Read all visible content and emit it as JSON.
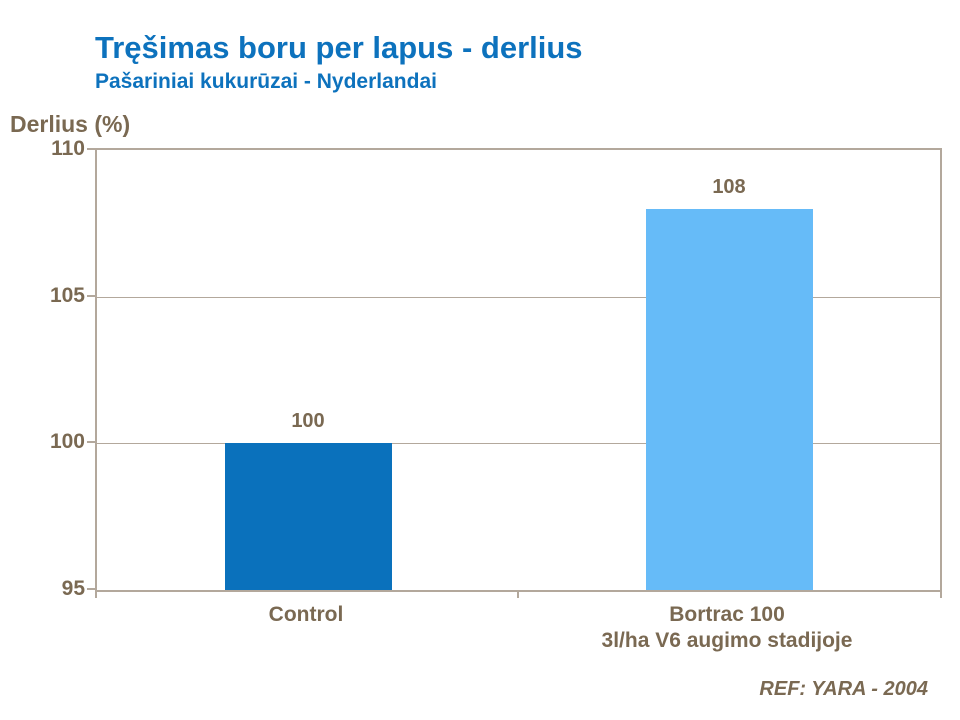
{
  "colors": {
    "title_blue": "#0d72bd",
    "text_brown": "#7a6952",
    "axis_line": "#b3a89c",
    "bar_control": "#0a71bc",
    "bar_bortrac": "#66bbf8",
    "background": "#ffffff"
  },
  "footer": {
    "ref_label": "REF: YARA - 2004"
  },
  "chart_data": {
    "type": "bar",
    "title": "Tręšimas boru per lapus - derlius",
    "subtitle": "Pašariniai kukurūzai - Nyderlandai",
    "ylabel": "Derlius (%)",
    "xlabel": "",
    "categories": [
      "Control",
      "Bortrac 100"
    ],
    "category_sublabels": [
      "",
      "3l/ha V6 augimo stadijoje"
    ],
    "values": [
      100,
      108
    ],
    "data_labels": [
      "100",
      "108"
    ],
    "bar_colors": [
      "#0a71bc",
      "#66bbf8"
    ],
    "ylim": [
      95,
      110
    ],
    "yticks": [
      95,
      100,
      105,
      110
    ],
    "grid": true,
    "legend": "none"
  }
}
